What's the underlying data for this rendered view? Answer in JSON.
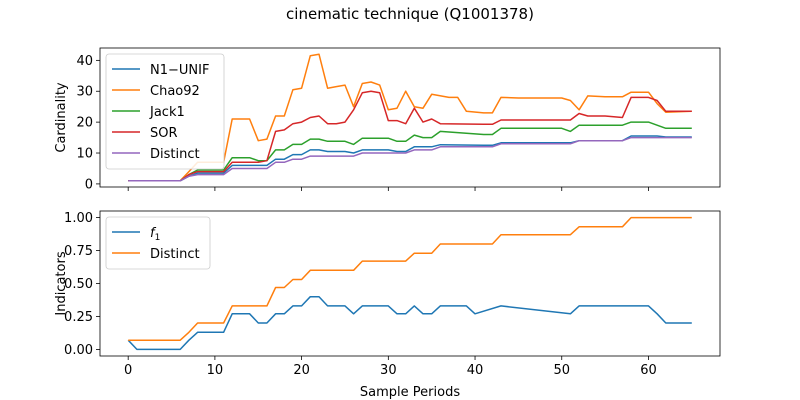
{
  "figure_title": "cinematic technique (Q1001378)",
  "chart_data": [
    {
      "type": "line",
      "title": "",
      "xlabel": "",
      "ylabel": "Cardinality",
      "xlim": [
        -3.25,
        68.25
      ],
      "ylim": [
        -1,
        44
      ],
      "xticks": [
        0,
        10,
        20,
        30,
        40,
        50,
        60
      ],
      "yticks": [
        0,
        10,
        20,
        30,
        40
      ],
      "ytick_labels": [
        "0",
        "10",
        "20",
        "30",
        "40"
      ],
      "legend_position": "upper-left",
      "series": [
        {
          "name": "N1−UNIF",
          "color": "#1f77b4",
          "points": [
            [
              0,
              1
            ],
            [
              6,
              1
            ],
            [
              7,
              2.5
            ],
            [
              8,
              3.5
            ],
            [
              11,
              3.5
            ],
            [
              12,
              6
            ],
            [
              15,
              6
            ],
            [
              16,
              6
            ],
            [
              17,
              8
            ],
            [
              18,
              8
            ],
            [
              19,
              9.5
            ],
            [
              20,
              9.5
            ],
            [
              21,
              11
            ],
            [
              22,
              11
            ],
            [
              23,
              10.5
            ],
            [
              25,
              10.5
            ],
            [
              26,
              10
            ],
            [
              27,
              11
            ],
            [
              29,
              11
            ],
            [
              30,
              11
            ],
            [
              31,
              10.5
            ],
            [
              32,
              10.5
            ],
            [
              33,
              12
            ],
            [
              35,
              12
            ],
            [
              36,
              12.7
            ],
            [
              41,
              12.5
            ],
            [
              42,
              12.5
            ],
            [
              43,
              13.3
            ],
            [
              50,
              13.3
            ],
            [
              51,
              13.3
            ],
            [
              52,
              14
            ],
            [
              57,
              14
            ],
            [
              58,
              15.5
            ],
            [
              61,
              15.5
            ],
            [
              62,
              15.2
            ],
            [
              65,
              15.2
            ]
          ]
        },
        {
          "name": "Chao92",
          "color": "#ff7f0e",
          "points": [
            [
              0,
              1
            ],
            [
              6,
              1
            ],
            [
              7,
              4
            ],
            [
              8,
              7
            ],
            [
              11,
              7
            ],
            [
              12,
              21
            ],
            [
              14,
              21
            ],
            [
              15,
              14
            ],
            [
              16,
              14.5
            ],
            [
              17,
              22
            ],
            [
              18,
              22
            ],
            [
              19,
              30.5
            ],
            [
              20,
              31
            ],
            [
              21,
              41.5
            ],
            [
              22,
              42
            ],
            [
              23,
              31
            ],
            [
              24,
              31.5
            ],
            [
              25,
              32
            ],
            [
              26,
              25
            ],
            [
              27,
              32.5
            ],
            [
              28,
              33
            ],
            [
              29,
              32
            ],
            [
              30,
              24
            ],
            [
              31,
              24.5
            ],
            [
              32,
              30
            ],
            [
              33,
              25
            ],
            [
              34,
              24.5
            ],
            [
              35,
              29
            ],
            [
              37,
              28
            ],
            [
              38,
              28
            ],
            [
              39,
              23.5
            ],
            [
              41,
              23
            ],
            [
              42,
              23
            ],
            [
              43,
              28
            ],
            [
              45,
              27.8
            ],
            [
              50,
              27.8
            ],
            [
              51,
              27
            ],
            [
              52,
              24
            ],
            [
              53,
              28.5
            ],
            [
              55,
              28.2
            ],
            [
              57,
              28.2
            ],
            [
              58,
              29.7
            ],
            [
              60,
              29.7
            ],
            [
              61,
              26
            ],
            [
              62,
              23.2
            ],
            [
              65,
              23.5
            ]
          ]
        },
        {
          "name": "Jack1",
          "color": "#2ca02c",
          "points": [
            [
              0,
              1
            ],
            [
              6,
              1
            ],
            [
              7,
              3
            ],
            [
              8,
              4.5
            ],
            [
              11,
              4.5
            ],
            [
              12,
              8.5
            ],
            [
              14,
              8.5
            ],
            [
              15,
              7.5
            ],
            [
              16,
              7.5
            ],
            [
              17,
              11
            ],
            [
              18,
              11
            ],
            [
              19,
              12.8
            ],
            [
              20,
              12.8
            ],
            [
              21,
              14.5
            ],
            [
              22,
              14.5
            ],
            [
              23,
              13.8
            ],
            [
              25,
              13.8
            ],
            [
              26,
              12.8
            ],
            [
              27,
              14.8
            ],
            [
              29,
              14.8
            ],
            [
              30,
              14.8
            ],
            [
              31,
              13.8
            ],
            [
              32,
              13.8
            ],
            [
              33,
              15.8
            ],
            [
              34,
              15
            ],
            [
              35,
              15
            ],
            [
              36,
              17
            ],
            [
              41,
              16
            ],
            [
              42,
              16
            ],
            [
              43,
              18
            ],
            [
              50,
              18
            ],
            [
              51,
              17
            ],
            [
              52,
              19
            ],
            [
              57,
              19
            ],
            [
              58,
              20
            ],
            [
              60,
              20
            ],
            [
              61,
              19
            ],
            [
              62,
              18
            ],
            [
              65,
              18
            ]
          ]
        },
        {
          "name": "SOR",
          "color": "#d62728",
          "points": [
            [
              0,
              1
            ],
            [
              6,
              1
            ],
            [
              7,
              3
            ],
            [
              8,
              4
            ],
            [
              11,
              4
            ],
            [
              12,
              7
            ],
            [
              14,
              7
            ],
            [
              15,
              7
            ],
            [
              16,
              7.5
            ],
            [
              17,
              17
            ],
            [
              18,
              17.5
            ],
            [
              19,
              19.5
            ],
            [
              20,
              20
            ],
            [
              21,
              21.5
            ],
            [
              22,
              22
            ],
            [
              23,
              19.5
            ],
            [
              24,
              19.5
            ],
            [
              25,
              20
            ],
            [
              26,
              24
            ],
            [
              27,
              29.5
            ],
            [
              28,
              30
            ],
            [
              29,
              29.5
            ],
            [
              30,
              20.5
            ],
            [
              31,
              20.5
            ],
            [
              32,
              19.5
            ],
            [
              33,
              24.5
            ],
            [
              34,
              20
            ],
            [
              35,
              21
            ],
            [
              36,
              19.5
            ],
            [
              41,
              19.3
            ],
            [
              42,
              19.3
            ],
            [
              43,
              20.7
            ],
            [
              45,
              20.7
            ],
            [
              50,
              20.7
            ],
            [
              51,
              20.7
            ],
            [
              52,
              22.8
            ],
            [
              53,
              22
            ],
            [
              55,
              22
            ],
            [
              57,
              21.5
            ],
            [
              58,
              28
            ],
            [
              60,
              28
            ],
            [
              61,
              27
            ],
            [
              62,
              23.5
            ],
            [
              65,
              23.5
            ]
          ]
        },
        {
          "name": "Distinct",
          "color": "#9467bd",
          "points": [
            [
              0,
              1
            ],
            [
              6,
              1
            ],
            [
              7,
              2.5
            ],
            [
              8,
              3
            ],
            [
              11,
              3
            ],
            [
              12,
              5
            ],
            [
              16,
              5
            ],
            [
              17,
              7
            ],
            [
              18,
              7
            ],
            [
              19,
              8
            ],
            [
              20,
              8
            ],
            [
              21,
              9
            ],
            [
              26,
              9
            ],
            [
              27,
              10
            ],
            [
              31,
              10
            ],
            [
              32,
              10
            ],
            [
              33,
              11
            ],
            [
              35,
              11
            ],
            [
              36,
              12
            ],
            [
              42,
              12
            ],
            [
              43,
              13
            ],
            [
              51,
              13
            ],
            [
              52,
              14
            ],
            [
              57,
              14
            ],
            [
              58,
              15
            ],
            [
              65,
              15
            ]
          ]
        }
      ]
    },
    {
      "type": "line",
      "title": "",
      "xlabel": "Sample Periods",
      "ylabel": "Indicators",
      "xlim": [
        -3.25,
        68.25
      ],
      "ylim": [
        -0.05,
        1.05
      ],
      "xticks": [
        0,
        10,
        20,
        30,
        40,
        50,
        60
      ],
      "xtick_labels": [
        "0",
        "10",
        "20",
        "30",
        "40",
        "50",
        "60"
      ],
      "yticks": [
        0,
        0.25,
        0.5,
        0.75,
        1.0
      ],
      "ytick_labels": [
        "0.00",
        "0.25",
        "0.50",
        "0.75",
        "1.00"
      ],
      "legend_position": "upper-left",
      "series": [
        {
          "name": "f1",
          "name_base": "f",
          "name_sub": "1",
          "color": "#1f77b4",
          "points": [
            [
              0,
              0.07
            ],
            [
              1,
              0
            ],
            [
              6,
              0
            ],
            [
              7,
              0.07
            ],
            [
              8,
              0.13
            ],
            [
              11,
              0.13
            ],
            [
              12,
              0.27
            ],
            [
              14,
              0.27
            ],
            [
              15,
              0.2
            ],
            [
              16,
              0.2
            ],
            [
              17,
              0.27
            ],
            [
              18,
              0.27
            ],
            [
              19,
              0.33
            ],
            [
              20,
              0.33
            ],
            [
              21,
              0.4
            ],
            [
              22,
              0.4
            ],
            [
              23,
              0.33
            ],
            [
              25,
              0.33
            ],
            [
              26,
              0.27
            ],
            [
              27,
              0.33
            ],
            [
              30,
              0.33
            ],
            [
              31,
              0.27
            ],
            [
              32,
              0.27
            ],
            [
              33,
              0.33
            ],
            [
              34,
              0.27
            ],
            [
              35,
              0.27
            ],
            [
              36,
              0.33
            ],
            [
              39,
              0.33
            ],
            [
              40,
              0.27
            ],
            [
              43,
              0.33
            ],
            [
              51,
              0.27
            ],
            [
              52,
              0.33
            ],
            [
              60,
              0.33
            ],
            [
              61,
              0.27
            ],
            [
              62,
              0.2
            ],
            [
              65,
              0.2
            ]
          ]
        },
        {
          "name": "Distinct",
          "color": "#ff7f0e",
          "points": [
            [
              0,
              0.07
            ],
            [
              6,
              0.07
            ],
            [
              7,
              0.13
            ],
            [
              8,
              0.2
            ],
            [
              11,
              0.2
            ],
            [
              12,
              0.33
            ],
            [
              16,
              0.33
            ],
            [
              17,
              0.47
            ],
            [
              18,
              0.47
            ],
            [
              19,
              0.53
            ],
            [
              20,
              0.53
            ],
            [
              21,
              0.6
            ],
            [
              26,
              0.6
            ],
            [
              27,
              0.67
            ],
            [
              31,
              0.67
            ],
            [
              32,
              0.67
            ],
            [
              33,
              0.73
            ],
            [
              35,
              0.73
            ],
            [
              36,
              0.8
            ],
            [
              42,
              0.8
            ],
            [
              43,
              0.87
            ],
            [
              51,
              0.87
            ],
            [
              52,
              0.93
            ],
            [
              57,
              0.93
            ],
            [
              58,
              1.0
            ],
            [
              65,
              1.0
            ]
          ]
        }
      ]
    }
  ]
}
